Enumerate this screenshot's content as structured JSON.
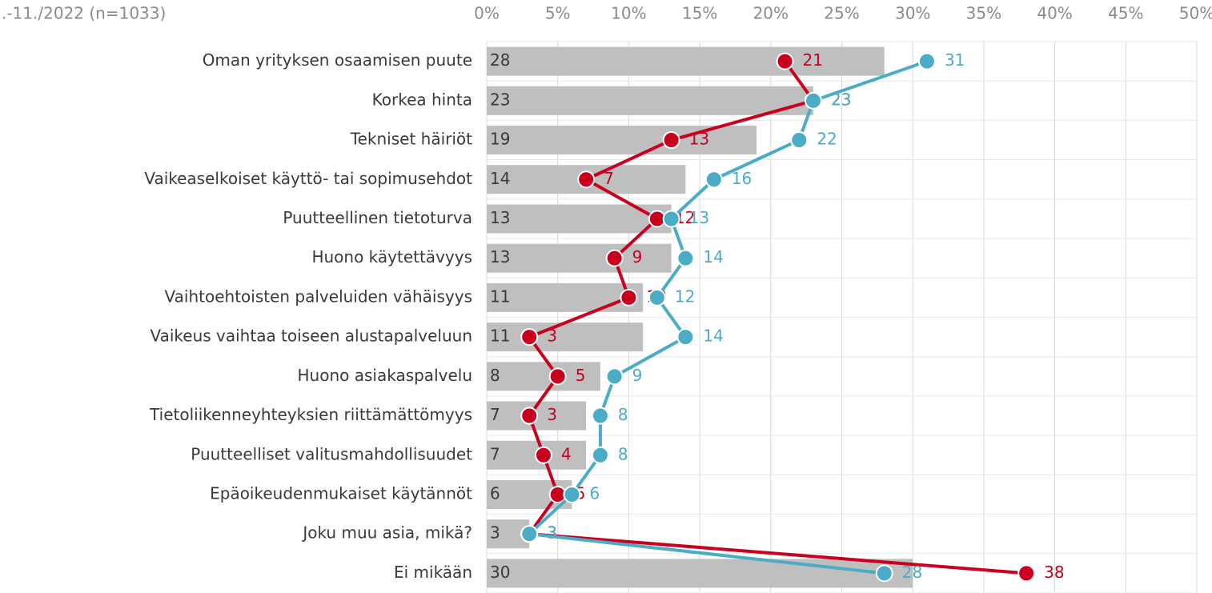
{
  "chart_data": {
    "type": "bar",
    "title": ".-11./2022 (n=1033)",
    "categories": [
      "Oman yrityksen osaamisen puute",
      "Korkea hinta",
      "Tekniset häiriöt",
      "Vaikeaselkoiset käyttö- tai sopimusehdot",
      "Puutteellinen tietoturva",
      "Huono käytettävyys",
      "Vaihtoehtoisten palveluiden vähäisyys",
      "Vaikeus vaihtaa toiseen alustapalveluun",
      "Huono asiakaspalvelu ",
      "Tietoliikenneyhteyksien riittämättömyys",
      "Puutteelliset valitusmahdollisuudet",
      "Epäoikeudenmukaiset käytännöt",
      "Joku muu asia, mikä?",
      "Ei mikään"
    ],
    "series": [
      {
        "type": "bar",
        "color": "#bfbfbf",
        "values": [
          28,
          23,
          19,
          14,
          13,
          13,
          11,
          11,
          8,
          7,
          7,
          6,
          3,
          30
        ]
      },
      {
        "type": "line",
        "color": "#c8001e",
        "values": [
          21,
          23,
          13,
          7,
          12,
          9,
          10,
          3,
          5,
          3,
          4,
          5,
          3,
          38
        ]
      },
      {
        "type": "line",
        "color": "#4bacc6",
        "values": [
          31,
          23,
          22,
          16,
          13,
          14,
          12,
          14,
          9,
          8,
          8,
          6,
          3,
          28
        ]
      }
    ],
    "xlim": [
      0,
      50
    ],
    "xticks": [
      {
        "value": 0,
        "label": "0%"
      },
      {
        "value": 5,
        "label": "5%"
      },
      {
        "value": 10,
        "label": "10%"
      },
      {
        "value": 15,
        "label": "15%"
      },
      {
        "value": 20,
        "label": "20%"
      },
      {
        "value": 25,
        "label": "25%"
      },
      {
        "value": 30,
        "label": "30%"
      },
      {
        "value": 35,
        "label": "35%"
      },
      {
        "value": 40,
        "label": "40%"
      },
      {
        "value": 45,
        "label": "45%"
      },
      {
        "value": 50,
        "label": "50%"
      }
    ],
    "grid": true
  }
}
